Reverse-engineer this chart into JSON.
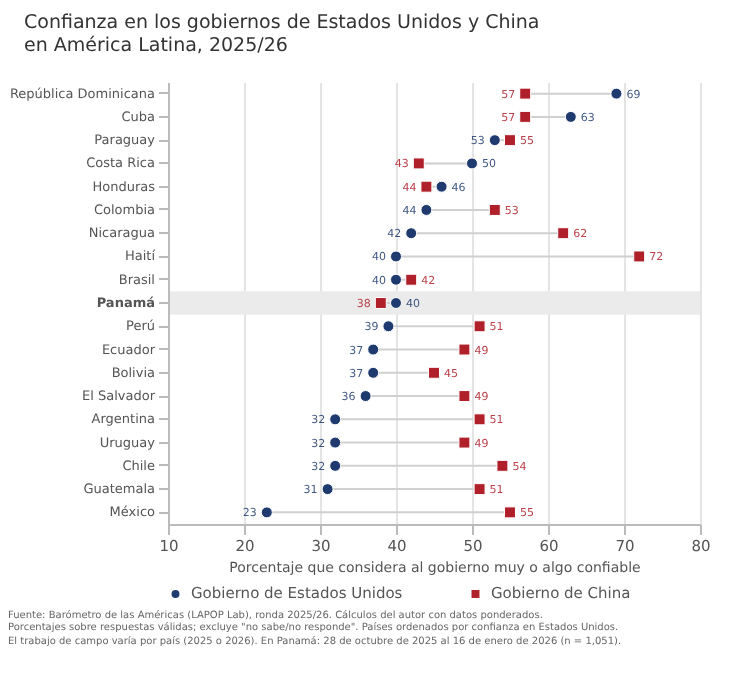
{
  "chart_data": {
    "type": "scatter",
    "orientation": "horizontal",
    "title": "Confianza en los gobiernos de Estados Unidos y China\nen América Latina, 2025/26",
    "xlabel": "Porcentaje que considera al gobierno muy o algo confiable",
    "categories": [
      "República Dominicana",
      "Cuba",
      "Paraguay",
      "Costa Rica",
      "Honduras",
      "Colombia",
      "Nicaragua",
      "Haití",
      "Brasil",
      "Panamá",
      "Perú",
      "Ecuador",
      "Bolivia",
      "El Salvador",
      "Argentina",
      "Uruguay",
      "Chile",
      "Guatemala",
      "México"
    ],
    "series": [
      {
        "name": "Gobierno de Estados Unidos",
        "color": "#1f3a6e",
        "marker": "circle",
        "values": [
          69,
          63,
          53,
          50,
          46,
          44,
          42,
          40,
          40,
          40,
          39,
          37,
          37,
          36,
          32,
          32,
          32,
          31,
          23
        ]
      },
      {
        "name": "Gobierno de China",
        "color": "#b0202a",
        "marker": "square",
        "values": [
          57,
          57,
          55,
          43,
          44,
          53,
          62,
          72,
          42,
          38,
          51,
          49,
          45,
          49,
          51,
          49,
          54,
          51,
          55
        ]
      }
    ],
    "xlim": [
      10,
      80
    ],
    "xticks": [
      10,
      20,
      30,
      40,
      50,
      60,
      70,
      80
    ],
    "grid": "x",
    "legend": "bottom",
    "data_labels": true,
    "bands": [
      {
        "axis": "y",
        "from": "Panamá",
        "to": "Panamá",
        "color": "#ebebeb"
      }
    ],
    "annotations": [
      "Fuente: Barómetro de las Américas (LAPOP Lab), ronda 2025/26. Cálculos del autor con datos ponderados.",
      "Porcentajes sobre respuestas válidas; excluye \"no sabe/no responde\". Países ordenados por confianza en Estados Unidos.",
      "El trabajo de campo varía por país (2025 o 2026). En Panamá: 28 de octubre de 2025 al 16 de enero de 2026 (n = 1,051)."
    ]
  }
}
